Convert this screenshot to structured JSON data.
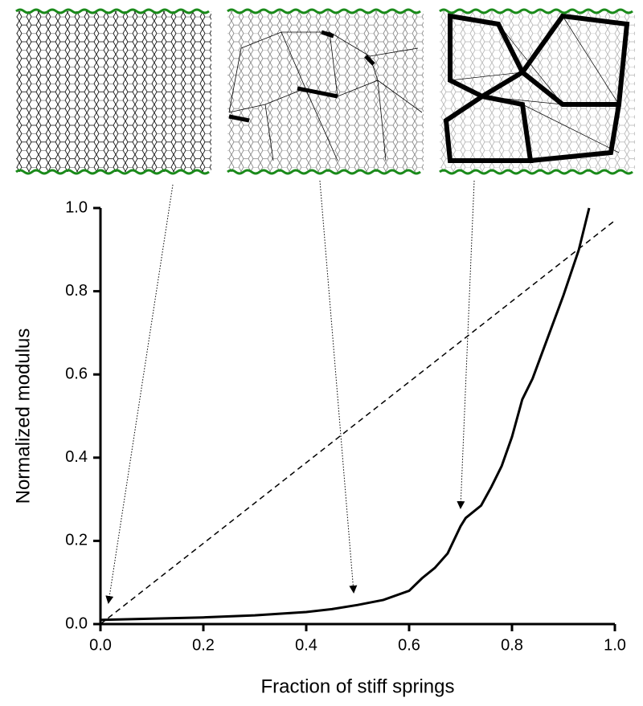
{
  "chart_data": {
    "type": "line",
    "x_label": "Fraction of stiff springs",
    "y_label": "Normalized modulus",
    "xlim": [
      0,
      1
    ],
    "ylim": [
      0,
      1
    ],
    "xticks": [
      {
        "value": 0,
        "label": "0.0"
      },
      0.2,
      0.4,
      0.6,
      0.8,
      {
        "value": 1,
        "label": "1.0"
      }
    ],
    "yticks": [
      {
        "value": 0,
        "label": "0.0"
      },
      0.2,
      0.4,
      0.6,
      0.8,
      {
        "value": 1,
        "label": "1.0"
      }
    ],
    "series": [
      {
        "color": "#000000",
        "style": "solid",
        "x": [
          0,
          0.1,
          0.2,
          0.3,
          0.4,
          0.45,
          0.5,
          0.55,
          0.6,
          0.625,
          0.65,
          0.675,
          0.7,
          0.71,
          0.74,
          0.76,
          0.78,
          0.8,
          0.82,
          0.84,
          0.87,
          0.9,
          0.93,
          0.95
        ],
        "values": [
          0.01,
          0.013,
          0.016,
          0.021,
          0.029,
          0.036,
          0.046,
          0.058,
          0.08,
          0.11,
          0.135,
          0.17,
          0.235,
          0.255,
          0.285,
          0.33,
          0.38,
          0.45,
          0.54,
          0.59,
          0.69,
          0.79,
          0.9,
          1.0
        ]
      },
      {
        "color": "#000000",
        "style": "dashed",
        "x": [
          0,
          1
        ],
        "values": [
          0,
          0.97
        ]
      }
    ]
  }
}
